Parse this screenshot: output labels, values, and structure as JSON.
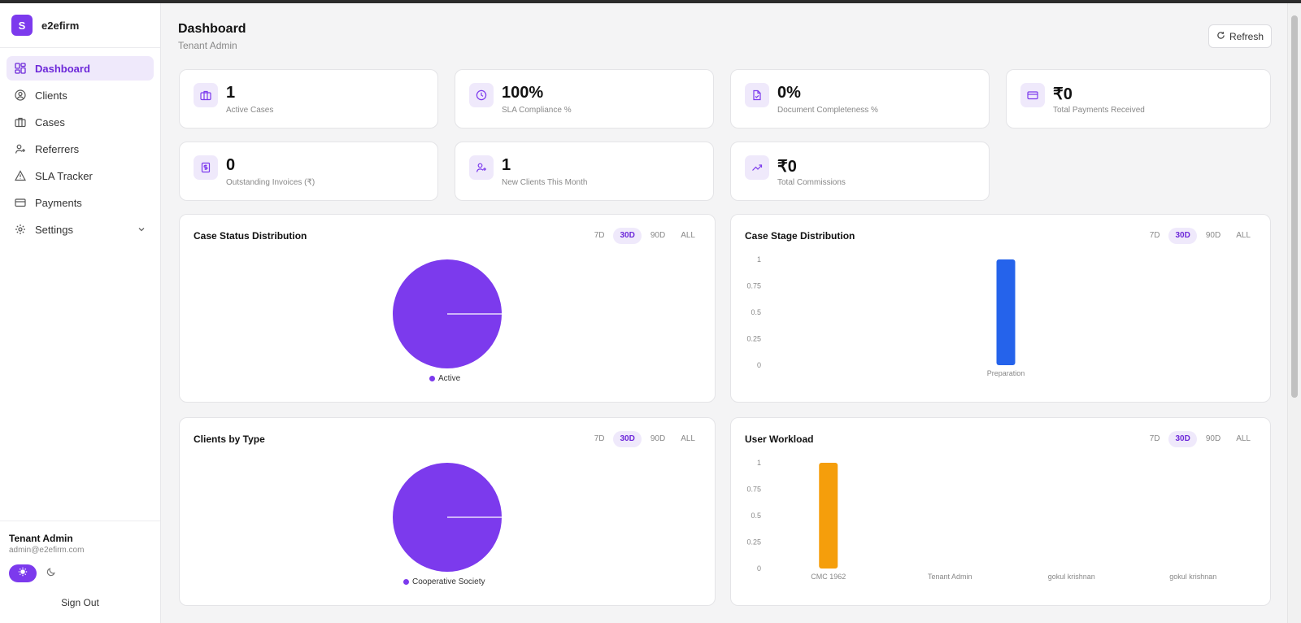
{
  "app": {
    "logo_letter": "S",
    "name": "e2efirm"
  },
  "sidebar": {
    "items": [
      {
        "label": "Dashboard",
        "icon": "dashboard-icon"
      },
      {
        "label": "Clients",
        "icon": "user-circle-icon"
      },
      {
        "label": "Cases",
        "icon": "briefcase-icon"
      },
      {
        "label": "Referrers",
        "icon": "user-plus-icon"
      },
      {
        "label": "SLA Tracker",
        "icon": "warning-icon"
      },
      {
        "label": "Payments",
        "icon": "credit-card-icon"
      },
      {
        "label": "Settings",
        "icon": "gear-icon"
      }
    ]
  },
  "user": {
    "name": "Tenant Admin",
    "email": "admin@e2efirm.com",
    "sign_out": "Sign Out"
  },
  "header": {
    "title": "Dashboard",
    "subtitle": "Tenant Admin",
    "refresh": "Refresh"
  },
  "stats": [
    {
      "value": "1",
      "label": "Active Cases",
      "icon": "briefcase-icon"
    },
    {
      "value": "100%",
      "label": "SLA Compliance %",
      "icon": "clock-icon"
    },
    {
      "value": "0%",
      "label": "Document Completeness %",
      "icon": "document-check-icon"
    },
    {
      "value": "₹0",
      "label": "Total Payments Received",
      "icon": "credit-card-icon"
    },
    {
      "value": "0",
      "label": "Outstanding Invoices (₹)",
      "icon": "invoice-icon"
    },
    {
      "value": "1",
      "label": "New Clients This Month",
      "icon": "user-plus-icon"
    },
    {
      "value": "₹0",
      "label": "Total Commissions",
      "icon": "trending-up-icon"
    }
  ],
  "ranges": [
    "7D",
    "30D",
    "90D",
    "ALL"
  ],
  "selected_range": "30D",
  "colors": {
    "accent": "#7c3aed",
    "blue_bar": "#2563eb",
    "orange_bar": "#f59e0b"
  },
  "charts": [
    {
      "title": "Case Status Distribution"
    },
    {
      "title": "Case Stage Distribution"
    },
    {
      "title": "Clients by Type"
    },
    {
      "title": "User Workload"
    }
  ],
  "chart_data": [
    {
      "type": "pie",
      "title": "Case Status Distribution",
      "categories": [
        "Active"
      ],
      "values": [
        1
      ]
    },
    {
      "type": "bar",
      "title": "Case Stage Distribution",
      "categories": [
        "Preparation"
      ],
      "values": [
        1
      ],
      "ylim": [
        0,
        1
      ],
      "yticks": [
        "1",
        "0.75",
        "0.5",
        "0.25",
        "0"
      ]
    },
    {
      "type": "pie",
      "title": "Clients by Type",
      "categories": [
        "Cooperative Society"
      ],
      "values": [
        1
      ]
    },
    {
      "type": "bar",
      "title": "User Workload",
      "categories": [
        "CMC 1962",
        "Tenant Admin",
        "gokul krishnan",
        "gokul krishnan"
      ],
      "values": [
        1,
        0,
        0,
        0
      ],
      "ylim": [
        0,
        1
      ],
      "yticks": [
        "1",
        "0.75",
        "0.5",
        "0.25",
        "0"
      ]
    }
  ]
}
